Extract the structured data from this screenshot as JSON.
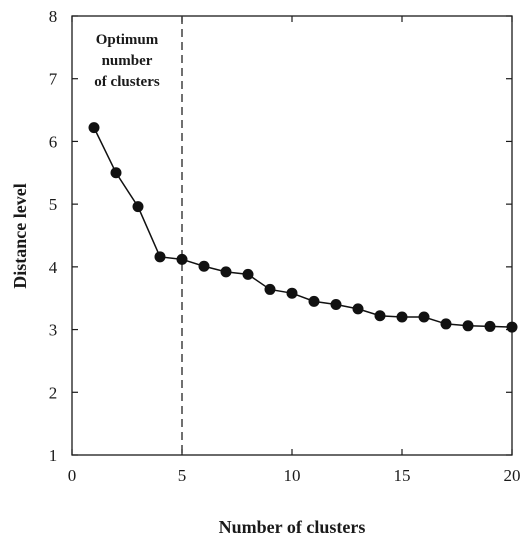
{
  "chart_data": {
    "type": "line",
    "xlabel": "Number of clusters",
    "ylabel": "Distance level",
    "xlim": [
      0,
      20
    ],
    "ylim": [
      1,
      8
    ],
    "xticks": [
      "0",
      "5",
      "10",
      "15",
      "20"
    ],
    "yticks": [
      "1",
      "2",
      "3",
      "4",
      "5",
      "6",
      "7",
      "8"
    ],
    "grid": false,
    "series": [
      {
        "x": [
          1,
          2,
          3,
          4,
          5,
          6,
          7,
          8,
          9,
          10,
          11,
          12,
          13,
          14,
          15,
          16,
          17,
          18,
          19,
          20
        ],
        "values": [
          6.22,
          5.5,
          4.96,
          4.16,
          4.12,
          4.01,
          3.92,
          3.88,
          3.64,
          3.58,
          3.45,
          3.4,
          3.33,
          3.22,
          3.2,
          3.2,
          3.09,
          3.06,
          3.05,
          3.04
        ],
        "color": "#111111",
        "marker": "circle"
      }
    ],
    "reference_line": {
      "x": 5,
      "style": "dashed"
    },
    "annotation": [
      "Optimum",
      "number",
      "of clusters"
    ]
  }
}
